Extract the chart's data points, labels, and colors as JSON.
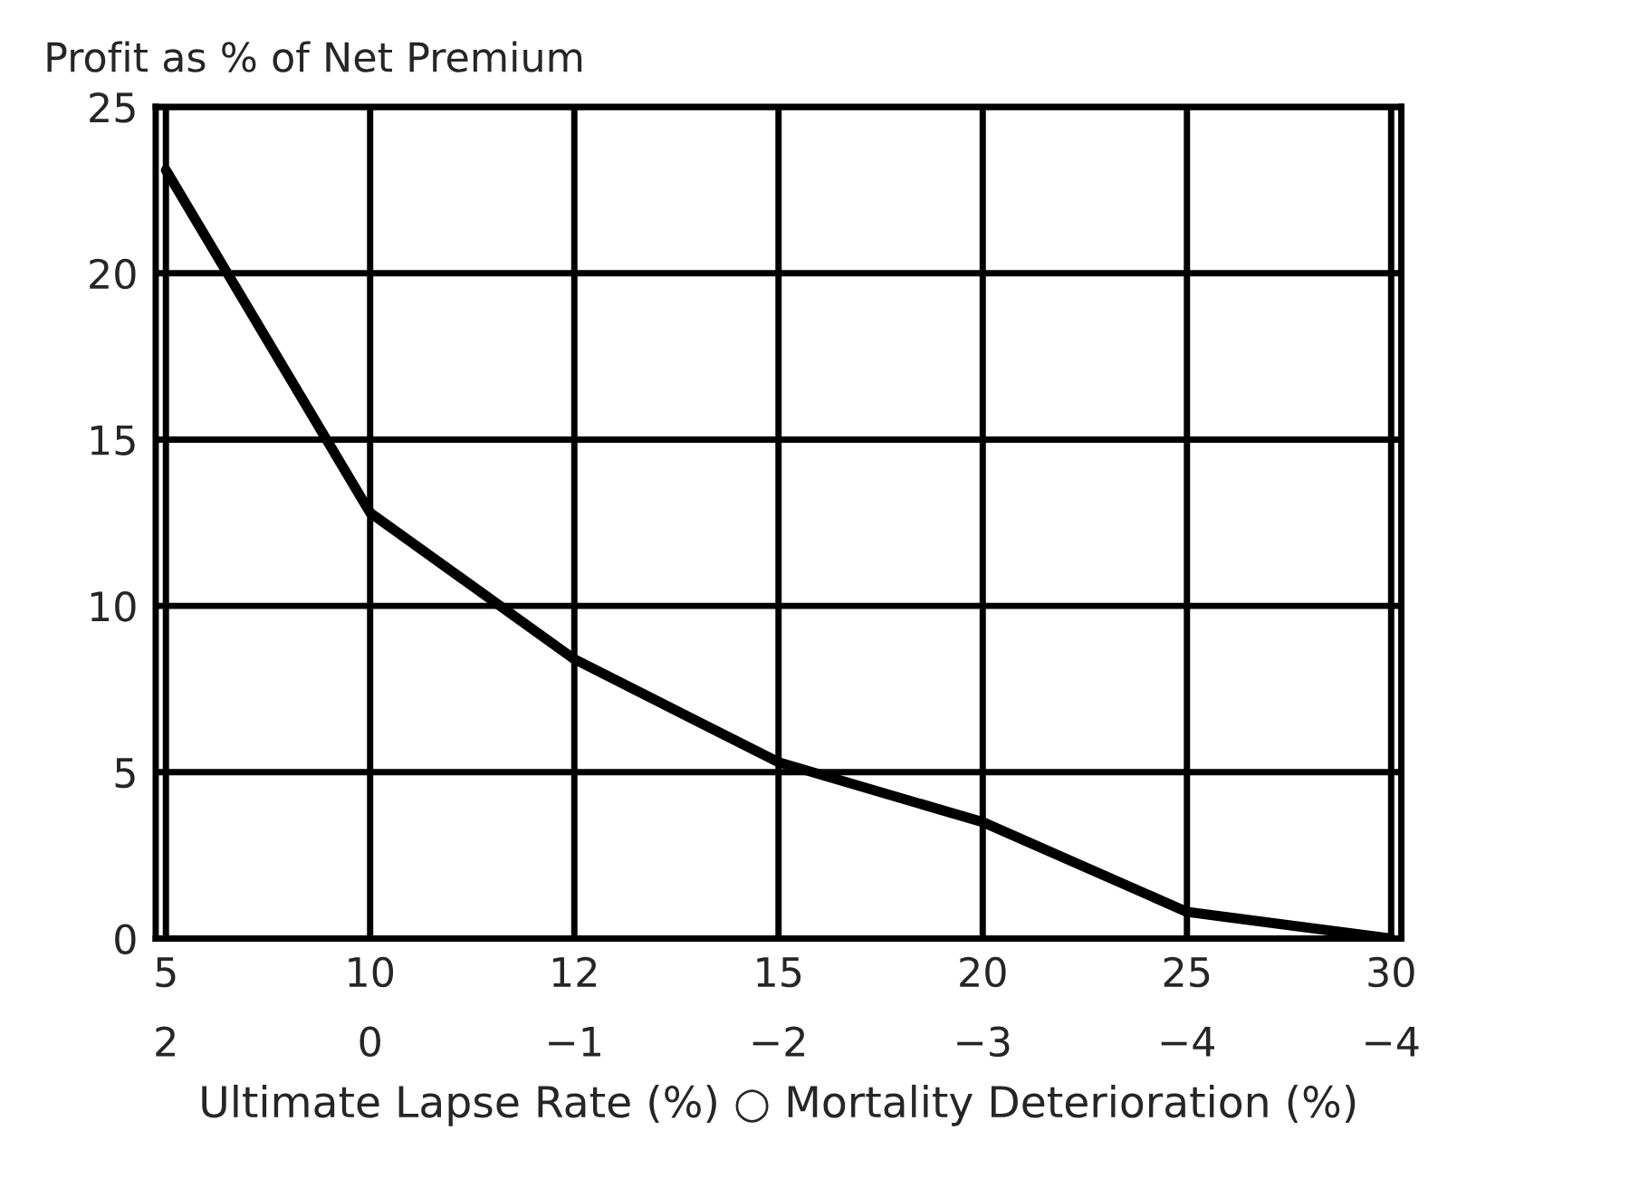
{
  "chart_data": {
    "type": "line",
    "title": "Profit as % of Net Premium",
    "categories": [
      "5\n2",
      "10\n0",
      "12\n−1",
      "15\n−2",
      "20\n−3",
      "25\n−4",
      "30\n−4"
    ],
    "series": [
      {
        "color": "#000000",
        "values": [
          23.1,
          12.8,
          8.4,
          5.3,
          3.5,
          0.8,
          0
        ]
      }
    ],
    "xlabel": "Ultimate Lapse Rate (%) ○ Mortality Deterioration (%)",
    "ylim": [
      0,
      25
    ],
    "yticks": [
      0,
      5,
      10,
      15,
      20,
      25
    ],
    "grid": true,
    "marker": "none",
    "line_style": "solid"
  }
}
